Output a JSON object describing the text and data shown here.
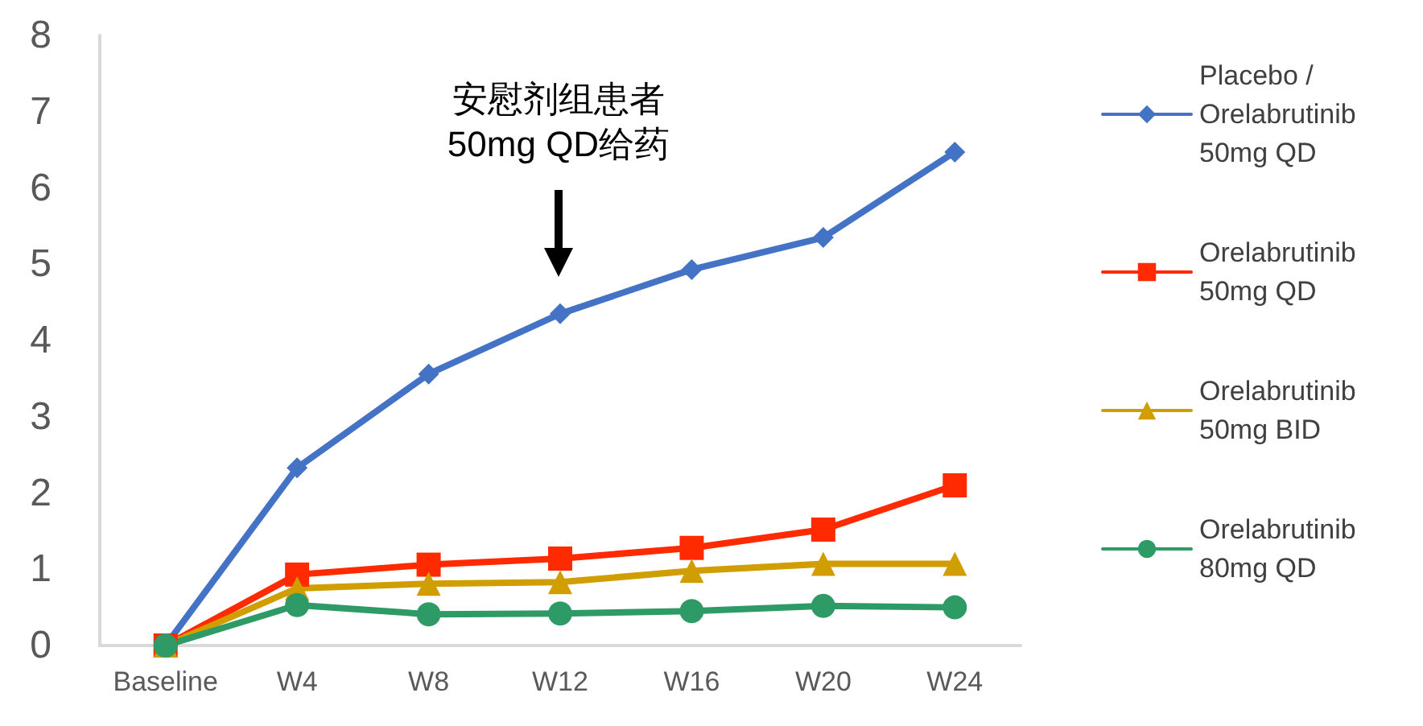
{
  "chart_data": {
    "type": "line",
    "categories": [
      "Baseline",
      "W4",
      "W8",
      "W12",
      "W16",
      "W20",
      "W24"
    ],
    "series": [
      {
        "name": "Placebo / Orelabrutinib 50mg QD",
        "color": "#4472c4",
        "marker": "diamond",
        "values": [
          0,
          2.33,
          3.56,
          4.35,
          4.93,
          5.35,
          6.47
        ]
      },
      {
        "name": "Orelabrutinib 50mg QD",
        "color": "#ff2a00",
        "marker": "square",
        "values": [
          0,
          0.93,
          1.06,
          1.14,
          1.28,
          1.52,
          2.1
        ]
      },
      {
        "name": "Orelabrutinib 50mg BID",
        "color": "#d09e00",
        "marker": "triangle",
        "values": [
          0,
          0.75,
          0.81,
          0.83,
          0.98,
          1.07,
          1.07
        ]
      },
      {
        "name": "Orelabrutinib 80mg QD",
        "color": "#2e9a66",
        "marker": "circle",
        "values": [
          0,
          0.53,
          0.41,
          0.42,
          0.45,
          0.52,
          0.5
        ]
      }
    ],
    "ylim": [
      0,
      8
    ],
    "yticks": [
      0,
      1,
      2,
      3,
      4,
      5,
      6,
      7,
      8
    ],
    "legend": "right",
    "line_style": "solid",
    "annotations": [
      "安慰剂组患者 50mg QD给药"
    ]
  }
}
